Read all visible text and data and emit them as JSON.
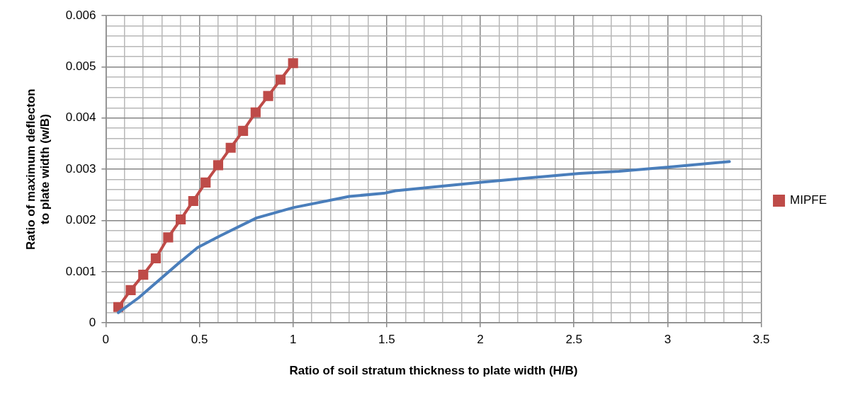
{
  "chart_data": {
    "type": "line",
    "xlabel": "Ratio of soil stratum thickness to plate width (H/B)",
    "ylabel": "Ratio of maximum deflecton to plate width (w/B)",
    "xlim": [
      0,
      3.5
    ],
    "ylim": [
      0,
      0.006
    ],
    "xticks": [
      0,
      {
        "value": 0.1,
        "label": null
      },
      {
        "value": 0.2,
        "label": null
      },
      {
        "value": 0.3,
        "label": null
      },
      {
        "value": 0.4,
        "label": null
      },
      0.5,
      {
        "value": 0.6,
        "label": null
      },
      {
        "value": 0.7,
        "label": null
      },
      {
        "value": 0.8,
        "label": null
      },
      {
        "value": 0.9,
        "label": null
      },
      1,
      {
        "value": 1.1,
        "label": null
      },
      {
        "value": 1.2,
        "label": null
      },
      {
        "value": 1.3,
        "label": null
      },
      {
        "value": 1.4,
        "label": null
      },
      1.5,
      {
        "value": 1.6,
        "label": null
      },
      {
        "value": 1.7,
        "label": null
      },
      {
        "value": 1.8,
        "label": null
      },
      {
        "value": 1.9,
        "label": null
      },
      2,
      {
        "value": 2.1,
        "label": null
      },
      {
        "value": 2.2,
        "label": null
      },
      {
        "value": 2.3,
        "label": null
      },
      {
        "value": 2.4,
        "label": null
      },
      2.5,
      {
        "value": 2.6,
        "label": null
      },
      {
        "value": 2.7,
        "label": null
      },
      {
        "value": 2.8,
        "label": null
      },
      {
        "value": 2.9,
        "label": null
      },
      3,
      {
        "value": 3.1,
        "label": null
      },
      {
        "value": 3.2,
        "label": null
      },
      {
        "value": 3.3,
        "label": null
      },
      {
        "value": 3.4,
        "label": null
      },
      3.5
    ],
    "yticks": [
      0,
      {
        "value": 0.0002,
        "label": null
      },
      {
        "value": 0.0004,
        "label": null
      },
      {
        "value": 0.0006,
        "label": null
      },
      {
        "value": 0.0008,
        "label": null
      },
      0.001,
      {
        "value": 0.0012,
        "label": null
      },
      {
        "value": 0.0014,
        "label": null
      },
      {
        "value": 0.0016,
        "label": null
      },
      {
        "value": 0.0018,
        "label": null
      },
      0.002,
      {
        "value": 0.0022,
        "label": null
      },
      {
        "value": 0.0024,
        "label": null
      },
      {
        "value": 0.0026,
        "label": null
      },
      {
        "value": 0.0028,
        "label": null
      },
      0.003,
      {
        "value": 0.0032,
        "label": null
      },
      {
        "value": 0.0034,
        "label": null
      },
      {
        "value": 0.0036,
        "label": null
      },
      {
        "value": 0.0038,
        "label": null
      },
      0.004,
      {
        "value": 0.0042,
        "label": null
      },
      {
        "value": 0.0044,
        "label": null
      },
      {
        "value": 0.0046,
        "label": null
      },
      {
        "value": 0.0048,
        "label": null
      },
      0.005,
      {
        "value": 0.0052,
        "label": null
      },
      {
        "value": 0.0054,
        "label": null
      },
      {
        "value": 0.0056,
        "label": null
      },
      {
        "value": 0.0058,
        "label": null
      },
      0.006
    ],
    "grid": true,
    "legend": "right",
    "line_style": "solid",
    "series": [
      {
        "color": "#4a7ebb",
        "marker": "none",
        "x": [
          0.067,
          0.175,
          0.4,
          0.49,
          0.61,
          0.805,
          1.0,
          1.3,
          1.485,
          1.547,
          2.015,
          2.53,
          2.74,
          3.03,
          3.33
        ],
        "values": [
          0.0002,
          0.00049,
          0.0012,
          0.00147,
          0.0017,
          0.00205,
          0.00225,
          0.00247,
          0.00253,
          0.00258,
          0.00275,
          0.00292,
          0.00296,
          0.00305,
          0.00315
        ]
      },
      {
        "name": "MIPFE",
        "color": "#be4b48",
        "marker": "square",
        "x": [
          0.067,
          0.133,
          0.2,
          0.267,
          0.333,
          0.4,
          0.467,
          0.533,
          0.6,
          0.667,
          0.733,
          0.8,
          0.867,
          0.933,
          1.0
        ],
        "values": [
          0.00031,
          0.00064,
          0.00094,
          0.00126,
          0.00167,
          0.00202,
          0.00238,
          0.00274,
          0.00308,
          0.00342,
          0.00375,
          0.00411,
          0.00443,
          0.00475,
          0.00507
        ]
      }
    ]
  }
}
